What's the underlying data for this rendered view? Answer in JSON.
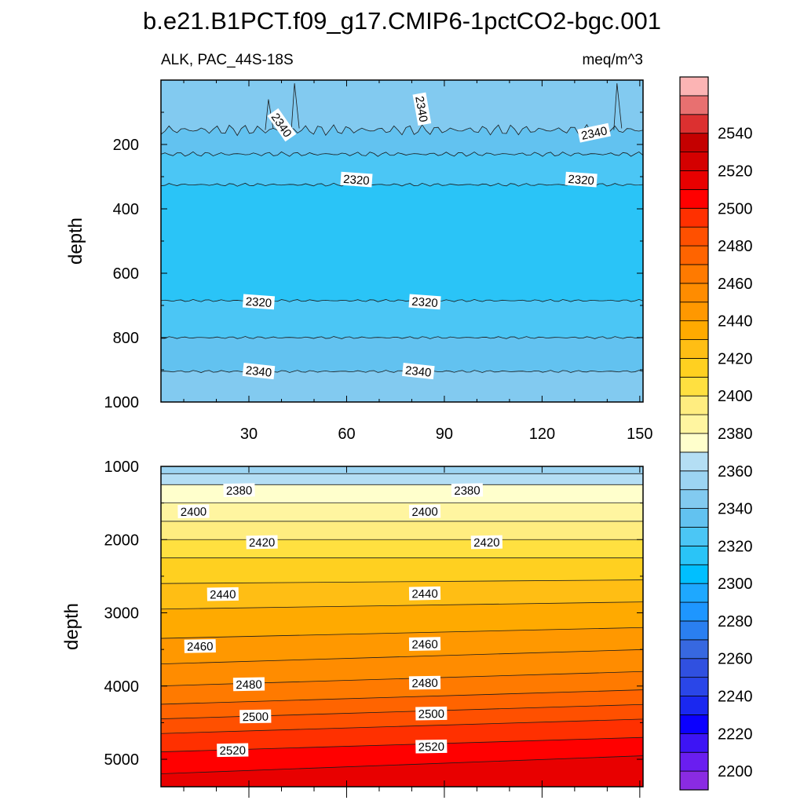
{
  "chart_data": {
    "type": "heatmap",
    "title": "b.e21.B1PCT.f09_g17.CMIP6-1pctCO2-bgc.001",
    "subtitle_left": "ALK, PAC_44S-18S",
    "subtitle_right": "meq/m^3",
    "colorbar": {
      "levels": [
        2190,
        2200,
        2210,
        2220,
        2230,
        2240,
        2250,
        2260,
        2270,
        2280,
        2290,
        2300,
        2310,
        2320,
        2330,
        2340,
        2350,
        2360,
        2370,
        2380,
        2390,
        2400,
        2410,
        2420,
        2430,
        2440,
        2450,
        2460,
        2470,
        2480,
        2490,
        2500,
        2510,
        2520,
        2530,
        2540,
        2550,
        2560
      ],
      "colors": [
        "#8a2be2",
        "#6a1ef0",
        "#3d14f5",
        "#0b00ff",
        "#1a28f0",
        "#2a46e8",
        "#3050e0",
        "#3768e0",
        "#2a7ff0",
        "#1e96ff",
        "#1ea8ff",
        "#00bfff",
        "#2ac4f7",
        "#4bc6f5",
        "#62c2f0",
        "#82caf0",
        "#9cd4f2",
        "#b4def4",
        "#ffffcc",
        "#fff5a0",
        "#ffed80",
        "#ffe040",
        "#ffd020",
        "#ffbe14",
        "#ffaa00",
        "#ff9800",
        "#ff8c00",
        "#ff7a00",
        "#ff6400",
        "#ff5000",
        "#ff3000",
        "#ff0000",
        "#e80000",
        "#d40000",
        "#c40000",
        "#dc3030",
        "#e87070",
        "#fcb4b4"
      ],
      "tick_labels": [
        "2200",
        "2220",
        "2240",
        "2260",
        "2280",
        "2300",
        "2320",
        "2340",
        "2360",
        "2380",
        "2400",
        "2420",
        "2440",
        "2460",
        "2480",
        "2500",
        "2520",
        "2540"
      ]
    },
    "upper_panel": {
      "xlabel": "",
      "ylabel": "depth",
      "xlim": [
        3,
        151
      ],
      "ylim": [
        1000,
        0
      ],
      "x_tick_labels": [
        "30",
        "60",
        "90",
        "120",
        "150"
      ],
      "y_tick_labels": [
        "200",
        "400",
        "600",
        "800",
        "1000"
      ],
      "layers": [
        {
          "from_depth": 0,
          "to_depth": 155,
          "value": 2345
        },
        {
          "from_depth": 155,
          "to_depth": 230,
          "value": 2335
        },
        {
          "from_depth": 230,
          "to_depth": 325,
          "value": 2325
        },
        {
          "from_depth": 325,
          "to_depth": 685,
          "value": 2315
        },
        {
          "from_depth": 685,
          "to_depth": 800,
          "value": 2325
        },
        {
          "from_depth": 800,
          "to_depth": 905,
          "value": 2335
        },
        {
          "from_depth": 905,
          "to_depth": 1000,
          "value": 2345
        }
      ],
      "contour_labels": [
        {
          "text": "2340",
          "x": 40,
          "depth": 140
        },
        {
          "text": "2340",
          "x": 83,
          "depth": 90
        },
        {
          "text": "2340",
          "x": 136,
          "depth": 165
        },
        {
          "text": "2320",
          "x": 63,
          "depth": 310
        },
        {
          "text": "2320",
          "x": 132,
          "depth": 310
        },
        {
          "text": "2320",
          "x": 33,
          "depth": 690
        },
        {
          "text": "2320",
          "x": 84,
          "depth": 690
        },
        {
          "text": "2340",
          "x": 33,
          "depth": 905
        },
        {
          "text": "2340",
          "x": 82,
          "depth": 905
        }
      ]
    },
    "lower_panel": {
      "xlabel": "",
      "ylabel": "depth",
      "xlim": [
        3,
        151
      ],
      "ylim": [
        5375,
        1000
      ],
      "y_tick_labels": [
        "1000",
        "2000",
        "3000",
        "4000",
        "5000"
      ],
      "contours_left": [
        1000,
        1100,
        1250,
        1500,
        1750,
        2000,
        2250,
        2600,
        2950,
        3350,
        3700,
        4000,
        4250,
        4450,
        4650,
        4900,
        5200
      ],
      "contours_right": [
        1000,
        1100,
        1250,
        1500,
        1750,
        2000,
        2250,
        2550,
        2850,
        3200,
        3500,
        3800,
        4050,
        4250,
        4450,
        4700,
        4950
      ],
      "band_values": [
        2355,
        2365,
        2375,
        2385,
        2395,
        2405,
        2415,
        2425,
        2435,
        2445,
        2455,
        2465,
        2475,
        2485,
        2495,
        2505,
        2515,
        2525
      ],
      "contour_labels": [
        {
          "text": "2380",
          "x": 27,
          "depth": 1330
        },
        {
          "text": "2380",
          "x": 97,
          "depth": 1330
        },
        {
          "text": "2400",
          "x": 13,
          "depth": 1620
        },
        {
          "text": "2400",
          "x": 84,
          "depth": 1620
        },
        {
          "text": "2420",
          "x": 34,
          "depth": 2040
        },
        {
          "text": "2420",
          "x": 103,
          "depth": 2040
        },
        {
          "text": "2440",
          "x": 22,
          "depth": 2750
        },
        {
          "text": "2440",
          "x": 84,
          "depth": 2740
        },
        {
          "text": "2460",
          "x": 15,
          "depth": 3460
        },
        {
          "text": "2460",
          "x": 84,
          "depth": 3430
        },
        {
          "text": "2480",
          "x": 30,
          "depth": 3980
        },
        {
          "text": "2480",
          "x": 84,
          "depth": 3960
        },
        {
          "text": "2500",
          "x": 32,
          "depth": 4420
        },
        {
          "text": "2500",
          "x": 86,
          "depth": 4380
        },
        {
          "text": "2520",
          "x": 25,
          "depth": 4880
        },
        {
          "text": "2520",
          "x": 86,
          "depth": 4830
        }
      ]
    }
  }
}
